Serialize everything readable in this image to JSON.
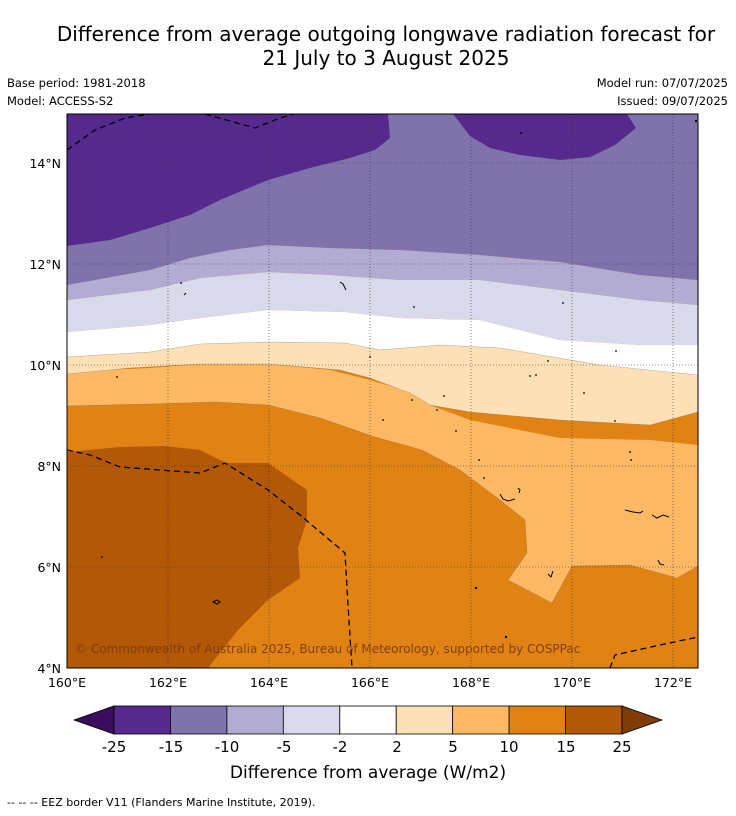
{
  "title": {
    "line1": "Difference from average outgoing longwave radiation forecast for",
    "line2": "21 July to 3 August 2025"
  },
  "meta": {
    "base_period": "Base period: 1981-2018",
    "model": "Model: ACCESS-S2",
    "model_run": "Model run: 07/07/2025",
    "issued": "Issued: 09/07/2025"
  },
  "map": {
    "lat_ticks": [
      "14°N",
      "12°N",
      "10°N",
      "8°N",
      "6°N",
      "4°N"
    ],
    "lon_ticks": [
      "160°E",
      "162°E",
      "164°E",
      "166°E",
      "168°E",
      "170°E",
      "172°E"
    ],
    "copyright": "© Commonwealth of Australia 2025, Bureau of Meteorology, supported by COSPPac",
    "extent": {
      "lon": [
        160,
        172.5
      ],
      "lat": [
        4,
        15
      ]
    }
  },
  "colorbar": {
    "labels": [
      "-25",
      "-15",
      "-10",
      "-5",
      "-2",
      "2",
      "5",
      "10",
      "15",
      "25"
    ],
    "colors": [
      "#3a0d5e",
      "#552a8c",
      "#8073ac",
      "#b2abd2",
      "#d8daeb",
      "#ffffff",
      "#fee0b6",
      "#fdb863",
      "#e08214",
      "#b35806",
      "#7f3b08"
    ],
    "title": "Difference from average (W/m2)"
  },
  "footer": "--  --  -- EEZ border V11 (Flanders Marine Institute, 2019)."
}
